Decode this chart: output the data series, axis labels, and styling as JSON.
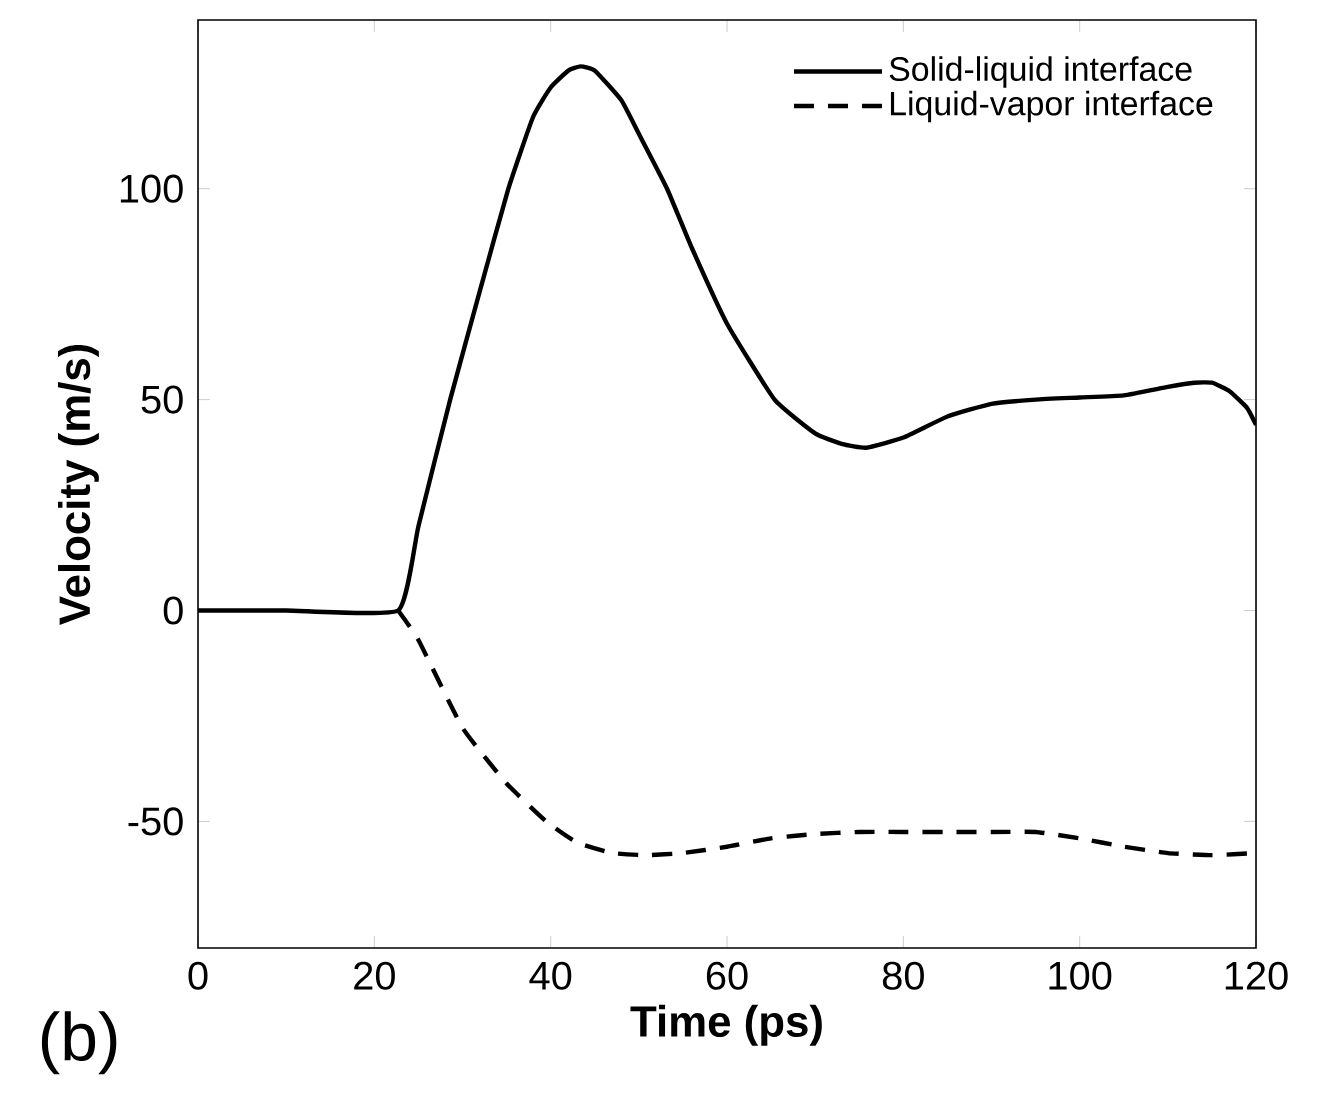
{
  "chart_data": {
    "type": "line",
    "xlabel": "Time (ps)",
    "ylabel": "Velocity (m/s)",
    "xlim": [
      0,
      120
    ],
    "ylim": [
      -80,
      140
    ],
    "xticks": [
      0,
      20,
      40,
      60,
      80,
      100,
      120
    ],
    "yticks": [
      -50,
      0,
      50,
      100
    ],
    "grid": false,
    "legend": "top right",
    "annotations": [
      "(b)"
    ],
    "series": [
      {
        "name": "Solid-liquid interface",
        "color": "#000000",
        "line_style": "solid",
        "x": [
          0,
          10,
          22.7,
          25,
          28.6,
          32,
          35.2,
          38,
          40,
          42,
          43.4,
          45,
          48,
          50,
          53.2,
          56,
          60,
          65.4,
          70,
          73,
          75.8,
          80,
          85,
          90,
          95,
          100,
          105,
          110,
          113,
          115,
          117,
          119,
          120
        ],
        "values": [
          0,
          0,
          0,
          20,
          50,
          76,
          100,
          117,
          124,
          128,
          129,
          128,
          121,
          113,
          100,
          86,
          68,
          50,
          42,
          39.5,
          38.6,
          41,
          46,
          49,
          50,
          50.5,
          51,
          53,
          54,
          54,
          52,
          48,
          44
        ]
      },
      {
        "name": "Liquid-vapor interface",
        "color": "#000000",
        "line_style": "dashed",
        "x": [
          22.7,
          25,
          30,
          35,
          39.5,
          43,
          47,
          50.8,
          55,
          60,
          65,
          70,
          75,
          80,
          85,
          90,
          95,
          100,
          105,
          110,
          115,
          120
        ],
        "values": [
          0,
          -7,
          -27.8,
          -41,
          -50,
          -55,
          -57.5,
          -58,
          -57.5,
          -56,
          -54,
          -53,
          -52.5,
          -52.5,
          -52.5,
          -52.5,
          -52.5,
          -54,
          -56,
          -57.5,
          -58,
          -57.5
        ]
      }
    ]
  }
}
